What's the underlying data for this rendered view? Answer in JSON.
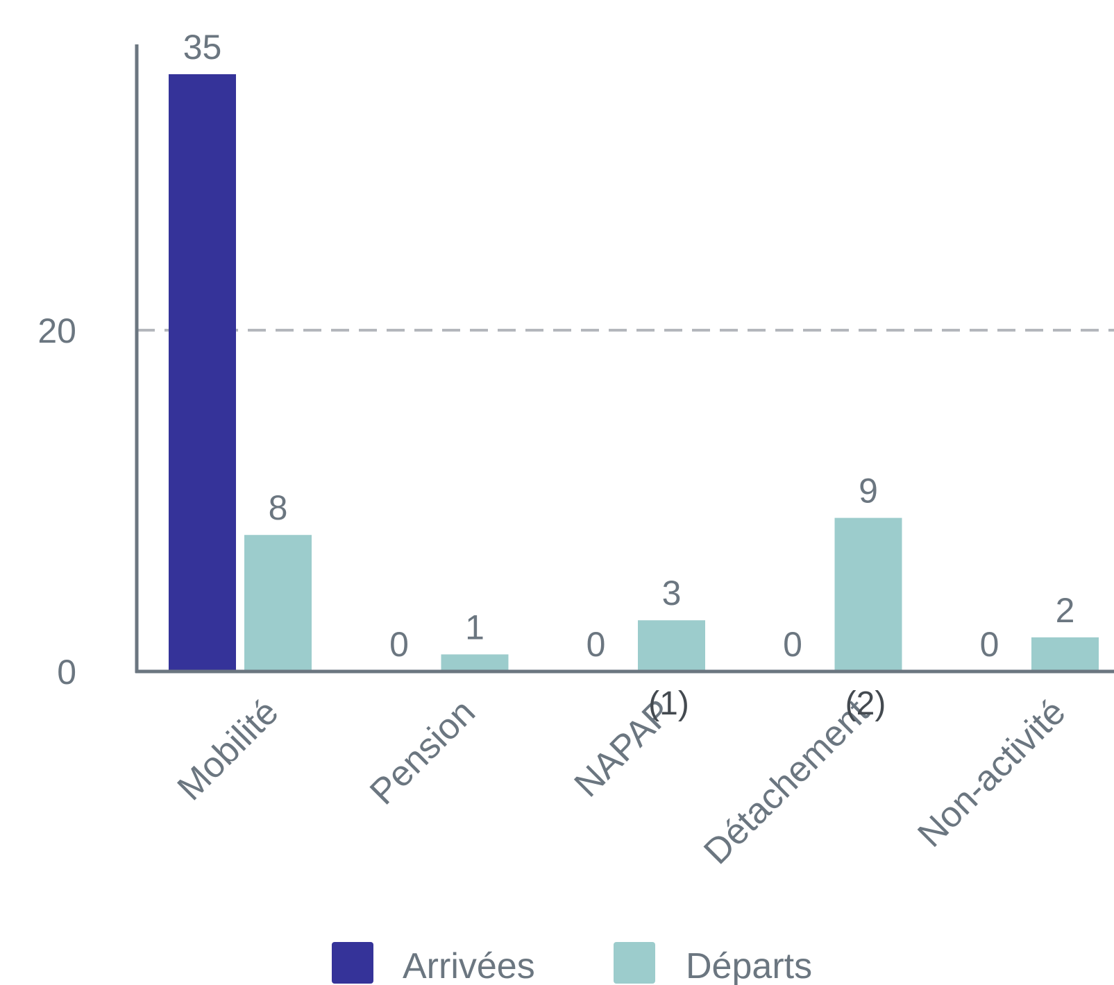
{
  "chart_data": {
    "type": "bar",
    "categories": [
      "Mobilité",
      "Pension",
      "NAPAP",
      "Détachement",
      "Non-activité"
    ],
    "category_notes": [
      "",
      "",
      "(1)",
      "(2)",
      ""
    ],
    "series": [
      {
        "name": "Arrivées",
        "values": [
          35,
          0,
          0,
          0,
          0
        ],
        "color": "#353399"
      },
      {
        "name": "Départs",
        "values": [
          8,
          1,
          3,
          9,
          2
        ],
        "color": "#9ccccc"
      }
    ],
    "yticks": [
      0,
      20
    ],
    "ylim": [
      0,
      37
    ],
    "grid": true,
    "grid_style": "dashed",
    "legend_position": "bottom",
    "title": "",
    "xlabel": "",
    "ylabel": ""
  }
}
